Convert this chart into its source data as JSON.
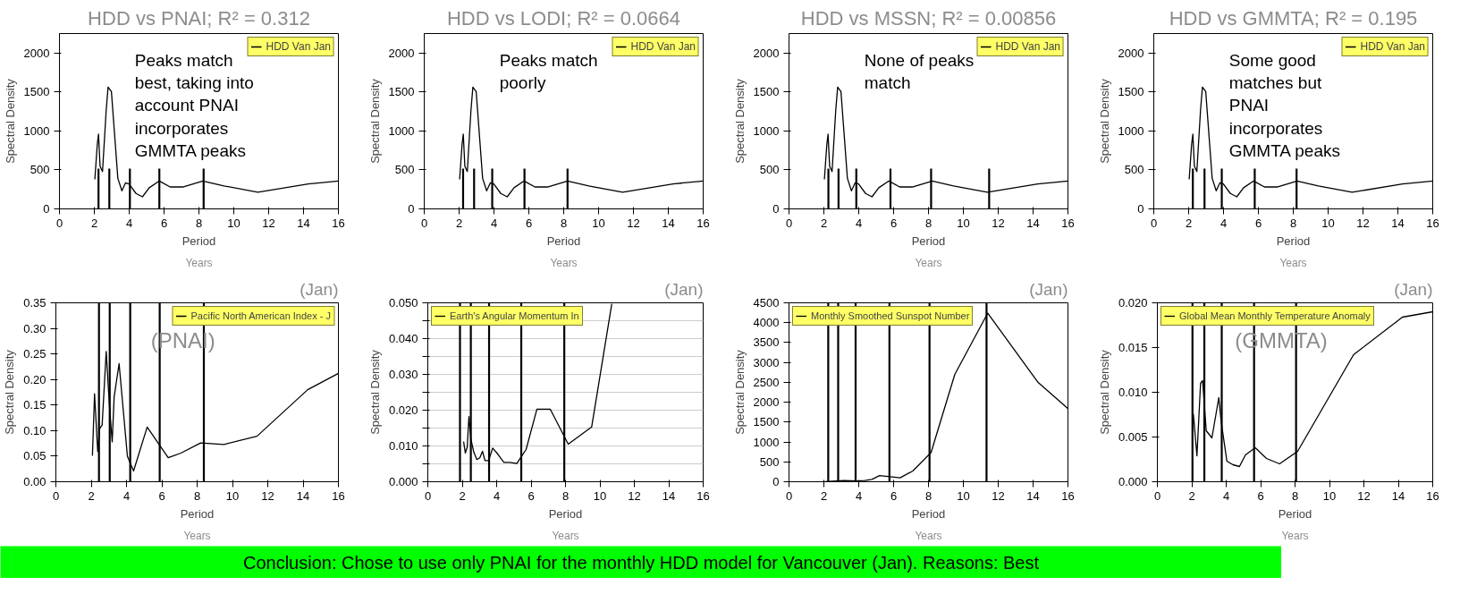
{
  "chart_data": [
    {
      "type": "line",
      "title": "HDD vs PNAI; R² = 0.312",
      "xlabel": "Period",
      "ylabel": "Spectral Density",
      "xlim": [
        0,
        16
      ],
      "ylim": [
        0,
        2250
      ],
      "xticks": [
        0,
        2,
        4,
        6,
        8,
        10,
        12,
        14,
        16
      ],
      "yticks": [
        0,
        500,
        1000,
        1500,
        2000
      ],
      "legend": "top right",
      "series": [
        {
          "name": "HDD Van Jan",
          "color": "#000000",
          "x": [
            2.03,
            2.17,
            2.24,
            2.33,
            2.47,
            2.68,
            2.79,
            2.98,
            3.35,
            3.58,
            3.79,
            3.99,
            4.39,
            4.76,
            5.15,
            5.73,
            6.35,
            7.07,
            8.22,
            9.44,
            11.38,
            14.27,
            16
          ],
          "values": [
            378,
            828,
            959,
            547,
            479,
            1263,
            1563,
            1505,
            392,
            232,
            334,
            320,
            198,
            155,
            271,
            358,
            281,
            281,
            358,
            295,
            213,
            320,
            358
          ]
        }
      ],
      "ref_lines": [
        {
          "axis": "x",
          "value": 2.24
        },
        {
          "axis": "x",
          "value": 2.86
        },
        {
          "axis": "x",
          "value": 4.04
        },
        {
          "axis": "x",
          "value": 5.73
        },
        {
          "axis": "x",
          "value": 8.27
        }
      ],
      "annotations": [
        "Years",
        "Peaks match\nbest, taking into\naccount PNAI\nincorporates\nGMMTA peaks"
      ]
    },
    {
      "type": "line",
      "title": "HDD vs LODI; R² = 0.0664",
      "xlabel": "Period",
      "ylabel": "Spectral Density",
      "xlim": [
        0,
        16
      ],
      "ylim": [
        0,
        2250
      ],
      "xticks": [
        0,
        2,
        4,
        6,
        8,
        10,
        12,
        14,
        16
      ],
      "yticks": [
        0,
        500,
        1000,
        1500,
        2000
      ],
      "legend": "top right",
      "series": [
        {
          "name": "HDD Van Jan",
          "color": "#000000",
          "x": [
            2.03,
            2.17,
            2.24,
            2.33,
            2.47,
            2.68,
            2.79,
            2.98,
            3.35,
            3.58,
            3.79,
            3.99,
            4.39,
            4.76,
            5.15,
            5.73,
            6.35,
            7.07,
            8.22,
            9.44,
            11.38,
            14.27,
            16
          ],
          "values": [
            378,
            828,
            959,
            547,
            479,
            1263,
            1563,
            1505,
            392,
            232,
            334,
            320,
            198,
            155,
            271,
            358,
            281,
            281,
            358,
            295,
            213,
            320,
            358
          ]
        }
      ],
      "ref_lines": [
        {
          "axis": "x",
          "value": 2.23
        },
        {
          "axis": "x",
          "value": 2.86
        },
        {
          "axis": "x",
          "value": 3.9
        },
        {
          "axis": "x",
          "value": 5.75
        },
        {
          "axis": "x",
          "value": 8.22
        }
      ],
      "annotations": [
        "Years",
        "Peaks match\npoorly"
      ]
    },
    {
      "type": "line",
      "title": "HDD vs MSSN; R² = 0.00856",
      "xlabel": "Period",
      "ylabel": "Spectral Density",
      "xlim": [
        0,
        16
      ],
      "ylim": [
        0,
        2250
      ],
      "xticks": [
        0,
        2,
        4,
        6,
        8,
        10,
        12,
        14,
        16
      ],
      "yticks": [
        0,
        500,
        1000,
        1500,
        2000
      ],
      "legend": "top right",
      "series": [
        {
          "name": "HDD Van Jan",
          "color": "#000000",
          "x": [
            2.03,
            2.17,
            2.24,
            2.33,
            2.47,
            2.68,
            2.79,
            2.98,
            3.35,
            3.58,
            3.79,
            3.99,
            4.39,
            4.76,
            5.15,
            5.73,
            6.35,
            7.07,
            8.22,
            9.44,
            11.38,
            14.27,
            16
          ],
          "values": [
            378,
            828,
            959,
            547,
            479,
            1263,
            1563,
            1505,
            392,
            232,
            334,
            320,
            198,
            155,
            271,
            358,
            281,
            281,
            358,
            295,
            213,
            320,
            358
          ]
        }
      ],
      "ref_lines": [
        {
          "axis": "x",
          "value": 2.26
        },
        {
          "axis": "x",
          "value": 2.84
        },
        {
          "axis": "x",
          "value": 3.86
        },
        {
          "axis": "x",
          "value": 5.82
        },
        {
          "axis": "x",
          "value": 8.15
        },
        {
          "axis": "x",
          "value": 11.48
        }
      ],
      "annotations": [
        "Years",
        "None of peaks\nmatch"
      ]
    },
    {
      "type": "line",
      "title": "HDD vs GMMTA; R² = 0.195",
      "xlabel": "Period",
      "ylabel": "Spectral Density",
      "xlim": [
        0,
        16
      ],
      "ylim": [
        0,
        2250
      ],
      "xticks": [
        0,
        2,
        4,
        6,
        8,
        10,
        12,
        14,
        16
      ],
      "yticks": [
        0,
        500,
        1000,
        1500,
        2000
      ],
      "legend": "top right",
      "series": [
        {
          "name": "HDD Van Jan",
          "color": "#000000",
          "x": [
            2.03,
            2.17,
            2.24,
            2.33,
            2.47,
            2.68,
            2.79,
            2.98,
            3.35,
            3.58,
            3.79,
            3.99,
            4.39,
            4.76,
            5.15,
            5.73,
            6.35,
            7.07,
            8.22,
            9.44,
            11.38,
            14.27,
            16
          ],
          "values": [
            378,
            828,
            959,
            547,
            479,
            1263,
            1563,
            1505,
            392,
            232,
            334,
            320,
            198,
            155,
            271,
            358,
            281,
            281,
            358,
            295,
            213,
            320,
            358
          ]
        }
      ],
      "ref_lines": [
        {
          "axis": "x",
          "value": 2.24
        },
        {
          "axis": "x",
          "value": 2.91
        },
        {
          "axis": "x",
          "value": 3.9
        },
        {
          "axis": "x",
          "value": 5.79
        },
        {
          "axis": "x",
          "value": 8.19
        }
      ],
      "annotations": [
        "Years",
        "Some good\nmatches but\nPNAI\nincorporates\nGMMTA peaks"
      ]
    },
    {
      "type": "line",
      "title": "(Jan)",
      "xlabel": "Period",
      "ylabel": "Spectral Density",
      "xlim": [
        0,
        16
      ],
      "ylim": [
        0,
        0.35
      ],
      "xticks": [
        0,
        2,
        4,
        6,
        8,
        10,
        12,
        14,
        16
      ],
      "yticks": [
        {
          "value": 0,
          "label": "0.00"
        },
        {
          "value": 0.05,
          "label": "0.05"
        },
        {
          "value": 0.1,
          "label": "0.10"
        },
        {
          "value": 0.15,
          "label": "0.15"
        },
        {
          "value": 0.2,
          "label": "0.20"
        },
        {
          "value": 0.25,
          "label": "0.25"
        },
        {
          "value": 0.3,
          "label": "0.30"
        },
        {
          "value": 0.35,
          "label": "0.35"
        }
      ],
      "legend": "top right",
      "series": [
        {
          "name": "Pacific North American Index - J",
          "color": "#000000",
          "x": [
            2.07,
            2.19,
            2.37,
            2.48,
            2.62,
            2.85,
            3.03,
            3.19,
            3.3,
            3.58,
            4.05,
            4.4,
            5.17,
            6.36,
            7.08,
            8.2,
            9.52,
            11.39,
            14.26,
            16
          ],
          "values": [
            0.051,
            0.172,
            0.059,
            0.104,
            0.111,
            0.255,
            0.151,
            0.078,
            0.166,
            0.231,
            0.05,
            0.021,
            0.107,
            0.047,
            0.056,
            0.076,
            0.073,
            0.089,
            0.18,
            0.212
          ]
        }
      ],
      "ref_lines": [
        {
          "axis": "x",
          "value": 2.44
        },
        {
          "axis": "x",
          "value": 3.05
        },
        {
          "axis": "x",
          "value": 4.21
        },
        {
          "axis": "x",
          "value": 5.88
        },
        {
          "axis": "x",
          "value": 8.38
        }
      ],
      "annotations": [
        "Years",
        "(PNAI)"
      ]
    },
    {
      "type": "line",
      "title": "(Jan)",
      "xlabel": "Period",
      "ylabel": "Spectral Density",
      "xlim": [
        0,
        16
      ],
      "ylim": [
        0,
        0.05
      ],
      "xticks": [
        0,
        2,
        4,
        6,
        8,
        10,
        12,
        14,
        16
      ],
      "yticks": [
        {
          "value": 0,
          "label": "0.000"
        },
        {
          "value": 0.005,
          "label": null
        },
        {
          "value": 0.01,
          "label": "0.010"
        },
        {
          "value": 0.015,
          "label": null
        },
        {
          "value": 0.02,
          "label": "0.020"
        },
        {
          "value": 0.025,
          "label": null
        },
        {
          "value": 0.03,
          "label": "0.030"
        },
        {
          "value": 0.035,
          "label": null
        },
        {
          "value": 0.04,
          "label": "0.040"
        },
        {
          "value": 0.045,
          "label": null
        },
        {
          "value": 0.05,
          "label": "0.050"
        }
      ],
      "grid": "y",
      "legend": "top left",
      "series": [
        {
          "name": "Earth's Angular Momentum In",
          "color": "#000000",
          "x": [
            2.08,
            2.18,
            2.29,
            2.39,
            2.5,
            2.67,
            2.85,
            3.02,
            3.18,
            3.32,
            3.53,
            3.77,
            4.02,
            4.42,
            4.77,
            5.17,
            5.71,
            6.34,
            7.11,
            8.16,
            9.52,
            10.69
          ],
          "values": [
            0.0112,
            0.008,
            0.0097,
            0.0182,
            0.012,
            0.0083,
            0.0062,
            0.0067,
            0.0085,
            0.0059,
            0.0059,
            0.0094,
            0.008,
            0.0054,
            0.0054,
            0.0051,
            0.009,
            0.0203,
            0.0203,
            0.0105,
            0.0153,
            0.0497
          ]
        }
      ],
      "ref_lines": [
        {
          "axis": "x",
          "value": 1.87
        },
        {
          "axis": "x",
          "value": 2.5
        },
        {
          "axis": "x",
          "value": 3.56
        },
        {
          "axis": "x",
          "value": 5.43
        },
        {
          "axis": "x",
          "value": 7.93
        }
      ],
      "annotations": [
        "Years"
      ]
    },
    {
      "type": "line",
      "title": "(Jan)",
      "xlabel": "Period",
      "ylabel": "Spectral Density",
      "xlim": [
        0,
        16
      ],
      "ylim": [
        0,
        4500
      ],
      "xticks": [
        0,
        2,
        4,
        6,
        8,
        10,
        12,
        14,
        16
      ],
      "yticks": [
        0,
        500,
        1000,
        1500,
        2000,
        2500,
        3000,
        3500,
        4000,
        4500
      ],
      "legend": "top left",
      "series": [
        {
          "name": "Monthly Smoothed Sunspot Number",
          "color": "#000000",
          "x": [
            2.07,
            3.14,
            3.94,
            4.35,
            4.76,
            5.19,
            5.8,
            6.37,
            7.1,
            8.15,
            9.51,
            11.4,
            14.29,
            16
          ],
          "values": [
            0,
            29,
            19,
            29,
            58,
            155,
            126,
            97,
            271,
            736,
            2700,
            4240,
            2497,
            1839
          ]
        }
      ],
      "ref_lines": [
        {
          "axis": "x",
          "value": 2.25
        },
        {
          "axis": "x",
          "value": 2.82
        },
        {
          "axis": "x",
          "value": 3.82
        },
        {
          "axis": "x",
          "value": 5.76
        },
        {
          "axis": "x",
          "value": 8.06
        },
        {
          "axis": "x",
          "value": 11.33
        }
      ],
      "annotations": [
        "Years"
      ]
    },
    {
      "type": "line",
      "title": "(Jan)",
      "xlabel": "Period",
      "ylabel": "Spectral Density",
      "xlim": [
        0,
        16
      ],
      "ylim": [
        0,
        0.02
      ],
      "xticks": [
        0,
        2,
        4,
        6,
        8,
        10,
        12,
        14,
        16
      ],
      "yticks": [
        {
          "value": 0,
          "label": "0.000"
        },
        {
          "value": 0.005,
          "label": "0.005"
        },
        {
          "value": 0.01,
          "label": "0.010"
        },
        {
          "value": 0.015,
          "label": "0.015"
        },
        {
          "value": 0.02,
          "label": "0.020"
        }
      ],
      "legend": "top left",
      "series": [
        {
          "name": "Global Mean Monthly Temperature Anomaly",
          "color": "#000000",
          "x": [
            2.09,
            2.3,
            2.51,
            2.63,
            2.84,
            3.17,
            3.57,
            3.71,
            4.04,
            4.39,
            4.77,
            5.12,
            5.69,
            6.34,
            7.1,
            8.15,
            11.4,
            14.24,
            16
          ],
          "values": [
            0.0076,
            0.0029,
            0.011,
            0.0113,
            0.0057,
            0.0049,
            0.0094,
            0.0067,
            0.0023,
            0.0019,
            0.0017,
            0.003,
            0.0038,
            0.0026,
            0.002,
            0.0034,
            0.0142,
            0.0184,
            0.019
          ]
        }
      ],
      "ref_lines": [
        {
          "axis": "x",
          "value": 2.04
        },
        {
          "axis": "x",
          "value": 2.73
        },
        {
          "axis": "x",
          "value": 3.74
        },
        {
          "axis": "x",
          "value": 5.62
        },
        {
          "axis": "x",
          "value": 8.06
        }
      ],
      "annotations": [
        "Years",
        "(GMMTA)"
      ]
    },
    {
      "type": "other",
      "annotations": [
        "Conclusion: Chose to use only PNAI for the monthly HDD model for Vancouver (Jan). Reasons: Best"
      ]
    }
  ]
}
